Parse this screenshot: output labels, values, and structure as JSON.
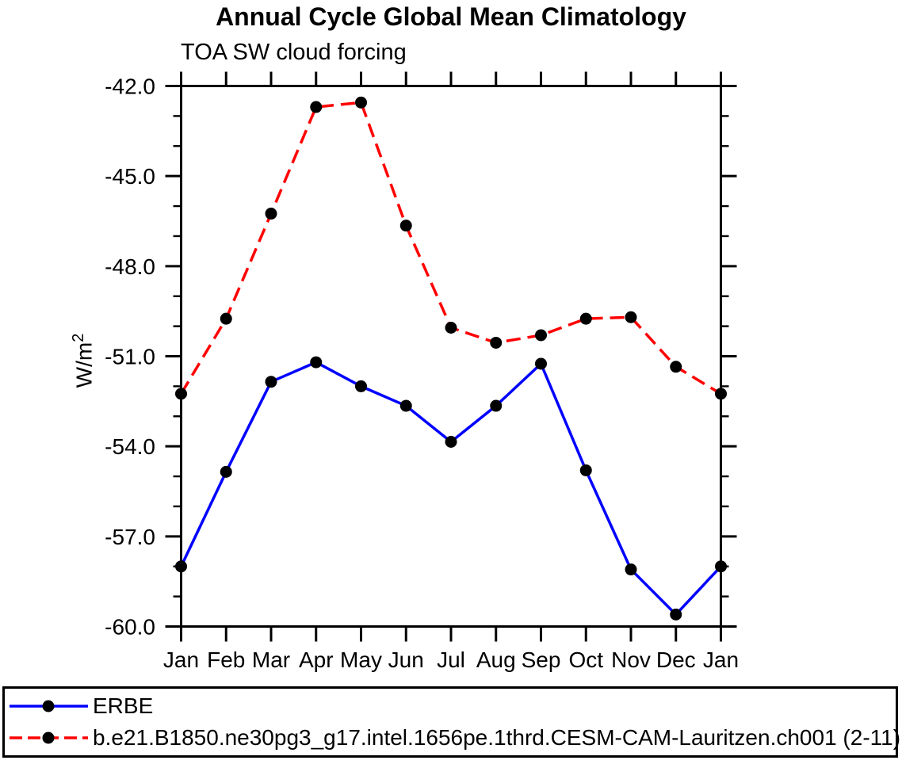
{
  "title": "Annual Cycle Global Mean Climatology",
  "subtitle": "TOA SW cloud forcing",
  "ylabel": {
    "text": "W/m",
    "sup": "2"
  },
  "chart_data": {
    "type": "line",
    "title": "Annual Cycle Global Mean Climatology",
    "subtitle": "TOA SW cloud forcing",
    "ylabel": "W/m²",
    "x_categories": [
      "Jan",
      "Feb",
      "Mar",
      "Apr",
      "May",
      "Jun",
      "Jul",
      "Aug",
      "Sep",
      "Oct",
      "Nov",
      "Dec",
      "Jan"
    ],
    "ylim": [
      -60,
      -42
    ],
    "y_major_step": 3,
    "y_minor_step": 1,
    "y_major_tick_labels": [
      "-42.0",
      "-45.0",
      "-48.0",
      "-51.0",
      "-54.0",
      "-57.0",
      "-60.0"
    ],
    "grid": false,
    "legend_position": "bottom-left-box",
    "axis_color": "#000000",
    "series": [
      {
        "name": "ERBE",
        "color": "#0000ff",
        "line_style": "solid",
        "marker": "filled-circle",
        "marker_color": "#000000",
        "values": [
          -58.0,
          -54.85,
          -51.85,
          -51.2,
          -52.0,
          -52.65,
          -53.85,
          -52.65,
          -51.25,
          -54.8,
          -58.1,
          -59.6,
          -58.0
        ]
      },
      {
        "name": "b.e21.B1850.ne30pg3_g17.intel.1656pe.1thrd.CESM-CAM-Lauritzen.ch001 (2-11)",
        "color": "#ff0000",
        "line_style": "dashed",
        "marker": "filled-circle",
        "marker_color": "#000000",
        "values": [
          -52.25,
          -49.75,
          -46.25,
          -42.7,
          -42.55,
          -46.65,
          -50.05,
          -50.55,
          -50.3,
          -49.75,
          -49.7,
          -51.35,
          -52.25
        ]
      }
    ]
  }
}
